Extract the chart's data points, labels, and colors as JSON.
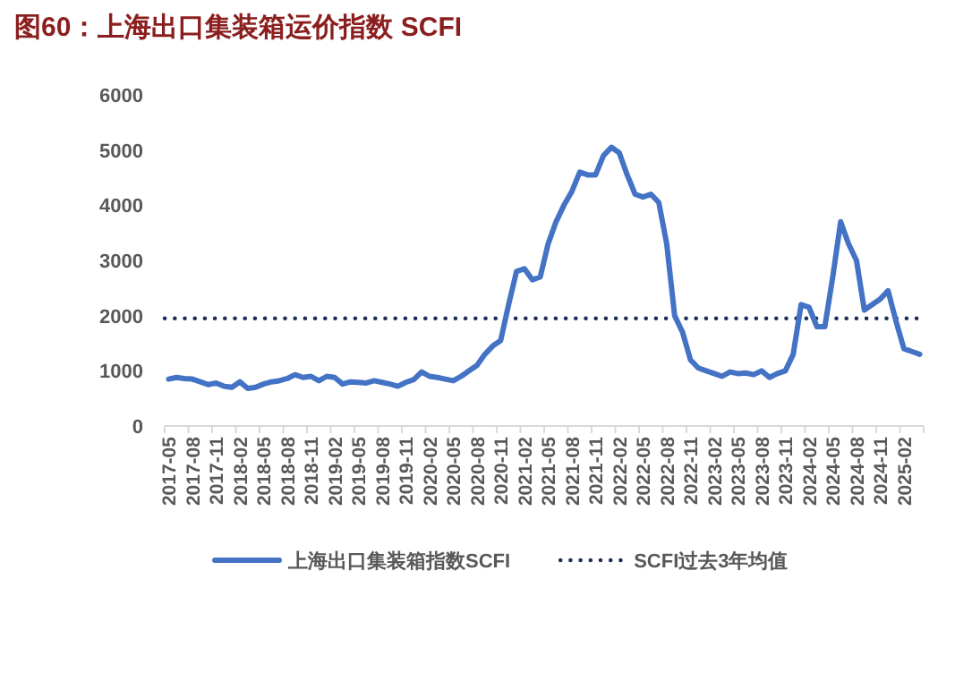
{
  "chart_data": {
    "type": "line",
    "title": "图60：上海出口集装箱运价指数 SCFI",
    "categories": [
      "2017-05",
      null,
      null,
      "2017-08",
      null,
      null,
      "2017-11",
      null,
      null,
      "2018-02",
      null,
      null,
      "2018-05",
      null,
      null,
      "2018-08",
      null,
      null,
      "2018-11",
      null,
      null,
      "2019-02",
      null,
      null,
      "2019-05",
      null,
      null,
      "2019-08",
      null,
      null,
      "2019-11",
      null,
      null,
      "2020-02",
      null,
      null,
      "2020-05",
      null,
      null,
      "2020-08",
      null,
      null,
      "2020-11",
      null,
      null,
      "2021-02",
      null,
      null,
      "2021-05",
      null,
      null,
      "2021-08",
      null,
      null,
      "2021-11",
      null,
      null,
      "2022-02",
      null,
      null,
      "2022-05",
      null,
      null,
      "2022-08",
      null,
      null,
      "2022-11",
      null,
      null,
      "2023-02",
      null,
      null,
      "2023-05",
      null,
      null,
      "2023-08",
      null,
      null,
      "2023-11",
      null,
      null,
      "2024-02",
      null,
      null,
      "2024-05",
      null,
      null,
      "2024-08",
      null,
      null,
      "2024-11",
      null,
      null,
      "2025-02",
      null,
      null
    ],
    "series": [
      {
        "name": "上海出口集装箱指数SCFI",
        "color": "#4472c4",
        "values": [
          850,
          880,
          860,
          850,
          800,
          750,
          780,
          720,
          700,
          800,
          680,
          700,
          760,
          800,
          820,
          860,
          930,
          880,
          900,
          820,
          900,
          880,
          760,
          800,
          790,
          780,
          820,
          790,
          760,
          720,
          790,
          840,
          980,
          900,
          880,
          850,
          820,
          900,
          1000,
          1100,
          1300,
          1450,
          1550,
          2200,
          2800,
          2850,
          2650,
          2700,
          3300,
          3700,
          4000,
          4250,
          4600,
          4550,
          4550,
          4900,
          5050,
          4950,
          4550,
          4200,
          4150,
          4200,
          4050,
          3300,
          2000,
          1700,
          1200,
          1050,
          1000,
          950,
          900,
          980,
          950,
          960,
          930,
          1000,
          880,
          950,
          1000,
          1300,
          2200,
          2150,
          1800,
          1800,
          2700,
          3700,
          3300,
          3000,
          2100,
          2200,
          2300,
          2450,
          1900,
          1400,
          1350,
          1300
        ]
      }
    ],
    "ref_lines": [
      {
        "axis": "y",
        "value": 1950,
        "label": "SCFI过去3年均值",
        "color": "#1f2d5a",
        "line_style": "dotted"
      }
    ],
    "ylim": [
      0,
      6000
    ],
    "yticks": [
      0,
      1000,
      2000,
      3000,
      4000,
      5000,
      6000
    ],
    "grid": false,
    "legend": "bottom",
    "marker": "none",
    "line_style": "solid"
  }
}
